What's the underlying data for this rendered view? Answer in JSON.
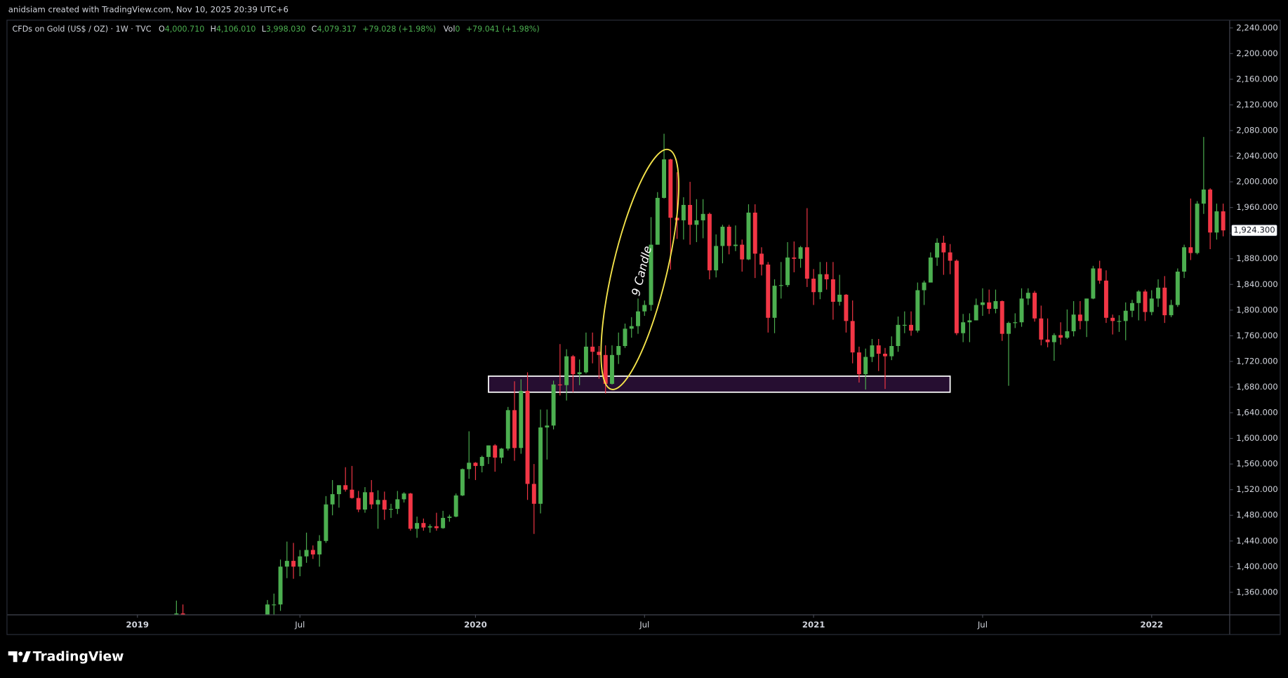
{
  "header": {
    "credit": "anidsiam created with TradingView.com, Nov 10, 2025 20:39 UTC+6"
  },
  "footer": {
    "brand": "TradingView"
  },
  "chart_data": {
    "type": "candlestick",
    "symbol": "CFDs on Gold (US$ / OZ) · 1W · TVC",
    "legend": {
      "o_label": "O",
      "o": "4,000.710",
      "h_label": "H",
      "h": "4,106.010",
      "l_label": "L",
      "l": "3,998.030",
      "c_label": "C",
      "c": "4,079.317",
      "change": "+79.028 (+1.98%)",
      "vol_label": "Vol",
      "vol": "0",
      "vol_change": "+79.041 (+1.98%)"
    },
    "annotation": "9 Candle",
    "up_color": "#4caf50",
    "down_color": "#f23645",
    "zone": {
      "x": [
        54,
        125
      ],
      "y": [
        1672,
        1697
      ]
    },
    "last_price": {
      "value": 1924.3,
      "label": "1,924.300"
    },
    "xlim": [
      -20,
      168
    ],
    "ylim": [
      1325.5,
      2251.5
    ],
    "xticks": [
      {
        "value": 0,
        "label": "2019"
      },
      {
        "value": 25,
        "label": "Jul"
      },
      {
        "value": 52,
        "label": "2020"
      },
      {
        "value": 78,
        "label": "Jul"
      },
      {
        "value": 104,
        "label": "2021"
      },
      {
        "value": 130,
        "label": "Jul"
      },
      {
        "value": 156,
        "label": "2022"
      }
    ],
    "yticks": [
      {
        "value": 1360,
        "label": "1,360.000"
      },
      {
        "value": 1400,
        "label": "1,400.000"
      },
      {
        "value": 1440,
        "label": "1,440.000"
      },
      {
        "value": 1480,
        "label": "1,480.000"
      },
      {
        "value": 1520,
        "label": "1,520.000"
      },
      {
        "value": 1560,
        "label": "1,560.000"
      },
      {
        "value": 1600,
        "label": "1,600.000"
      },
      {
        "value": 1640,
        "label": "1,640.000"
      },
      {
        "value": 1680,
        "label": "1,680.000"
      },
      {
        "value": 1720,
        "label": "1,720.000"
      },
      {
        "value": 1760,
        "label": "1,760.000"
      },
      {
        "value": 1800,
        "label": "1,800.000"
      },
      {
        "value": 1840,
        "label": "1,840.000"
      },
      {
        "value": 1880,
        "label": "1,880.000"
      },
      {
        "value": 1920,
        "label": "1,920.000"
      },
      {
        "value": 1960,
        "label": "1,960.000"
      },
      {
        "value": 2000,
        "label": "2,000.000"
      },
      {
        "value": 2040,
        "label": "2,040.000"
      },
      {
        "value": 2080,
        "label": "2,080.000"
      },
      {
        "value": 2120,
        "label": "2,120.000"
      },
      {
        "value": 2160,
        "label": "2,160.000"
      },
      {
        "value": 2200,
        "label": "2,200.000"
      },
      {
        "value": 2240,
        "label": "2,240.000"
      }
    ],
    "x": [
      6,
      7,
      20,
      21,
      22,
      23,
      24,
      25,
      26,
      27,
      28,
      29,
      30,
      31,
      32,
      33,
      34,
      35,
      36,
      37,
      38,
      39,
      40,
      41,
      42,
      43,
      44,
      45,
      46,
      47,
      48,
      49,
      50,
      51,
      52,
      53,
      54,
      55,
      56,
      57,
      58,
      59,
      60,
      61,
      62,
      63,
      64,
      65,
      66,
      67,
      68,
      69,
      70,
      71,
      72,
      73,
      74,
      75,
      76,
      77,
      78,
      79,
      80,
      81,
      82,
      83,
      84,
      85,
      86,
      87,
      88,
      89,
      90,
      91,
      92,
      93,
      94,
      95,
      96,
      97,
      98,
      99,
      100,
      101,
      102,
      103,
      104,
      105,
      106,
      107,
      108,
      109,
      110,
      111,
      112,
      113,
      114,
      115,
      116,
      117,
      118,
      119,
      120,
      121,
      122,
      123,
      124,
      125,
      126,
      127,
      128,
      129,
      130,
      131,
      132,
      133,
      134,
      135,
      136,
      137,
      138,
      139,
      140,
      141,
      142,
      143,
      144,
      145,
      146,
      147,
      148,
      149,
      150,
      151,
      152,
      153,
      154,
      155,
      156,
      157,
      158,
      159,
      160,
      161,
      162,
      163,
      164,
      165,
      166,
      167
    ],
    "ohlc": [
      [
        1316,
        1347,
        1311,
        1327
      ],
      [
        1327,
        1341,
        1319,
        1322
      ],
      [
        1305,
        1348,
        1305,
        1341
      ],
      [
        1341,
        1358,
        1321,
        1341
      ],
      [
        1341,
        1411,
        1331,
        1400
      ],
      [
        1400,
        1439,
        1382,
        1409
      ],
      [
        1409,
        1437,
        1381,
        1400
      ],
      [
        1400,
        1426,
        1385,
        1416
      ],
      [
        1416,
        1453,
        1406,
        1426
      ],
      [
        1426,
        1433,
        1412,
        1419
      ],
      [
        1419,
        1449,
        1400,
        1440
      ],
      [
        1440,
        1510,
        1437,
        1497
      ],
      [
        1497,
        1535,
        1480,
        1513
      ],
      [
        1513,
        1527,
        1492,
        1527
      ],
      [
        1527,
        1555,
        1517,
        1520
      ],
      [
        1520,
        1557,
        1506,
        1507
      ],
      [
        1507,
        1518,
        1485,
        1489
      ],
      [
        1489,
        1524,
        1484,
        1516
      ],
      [
        1516,
        1535,
        1490,
        1497
      ],
      [
        1497,
        1519,
        1459,
        1504
      ],
      [
        1504,
        1517,
        1473,
        1489
      ],
      [
        1489,
        1498,
        1476,
        1490
      ],
      [
        1490,
        1518,
        1482,
        1505
      ],
      [
        1505,
        1516,
        1500,
        1514
      ],
      [
        1514,
        1515,
        1456,
        1459
      ],
      [
        1459,
        1478,
        1445,
        1468
      ],
      [
        1468,
        1475,
        1456,
        1461
      ],
      [
        1461,
        1466,
        1453,
        1463
      ],
      [
        1463,
        1484,
        1456,
        1460
      ],
      [
        1460,
        1487,
        1459,
        1476
      ],
      [
        1476,
        1481,
        1470,
        1478
      ],
      [
        1478,
        1514,
        1477,
        1511
      ],
      [
        1511,
        1553,
        1510,
        1552
      ],
      [
        1552,
        1611,
        1537,
        1562
      ],
      [
        1562,
        1563,
        1535,
        1557
      ],
      [
        1557,
        1573,
        1547,
        1571
      ],
      [
        1571,
        1589,
        1560,
        1589
      ],
      [
        1589,
        1591,
        1548,
        1570
      ],
      [
        1570,
        1585,
        1561,
        1584
      ],
      [
        1584,
        1649,
        1581,
        1644
      ],
      [
        1644,
        1689,
        1565,
        1585
      ],
      [
        1585,
        1692,
        1576,
        1674
      ],
      [
        1674,
        1703,
        1504,
        1529
      ],
      [
        1529,
        1560,
        1451,
        1498
      ],
      [
        1498,
        1645,
        1483,
        1617
      ],
      [
        1617,
        1645,
        1567,
        1620
      ],
      [
        1620,
        1690,
        1614,
        1684
      ],
      [
        1684,
        1747,
        1667,
        1683
      ],
      [
        1683,
        1739,
        1659,
        1728
      ],
      [
        1728,
        1730,
        1672,
        1700
      ],
      [
        1700,
        1723,
        1683,
        1703
      ],
      [
        1703,
        1765,
        1701,
        1743
      ],
      [
        1743,
        1765,
        1717,
        1735
      ],
      [
        1735,
        1744,
        1693,
        1730
      ],
      [
        1730,
        1745,
        1670,
        1685
      ],
      [
        1685,
        1745,
        1684,
        1730
      ],
      [
        1730,
        1765,
        1716,
        1744
      ],
      [
        1744,
        1779,
        1741,
        1771
      ],
      [
        1771,
        1789,
        1757,
        1775
      ],
      [
        1775,
        1818,
        1763,
        1798
      ],
      [
        1798,
        1815,
        1791,
        1808
      ],
      [
        1808,
        1945,
        1799,
        1902
      ],
      [
        1902,
        1984,
        1902,
        1975
      ],
      [
        1975,
        2075,
        1974,
        2035
      ],
      [
        2035,
        2036,
        1863,
        1944
      ],
      [
        1944,
        2015,
        1911,
        1940
      ],
      [
        1940,
        1976,
        1910,
        1964
      ],
      [
        1964,
        2000,
        1902,
        1933
      ],
      [
        1933,
        1973,
        1906,
        1940
      ],
      [
        1940,
        1973,
        1912,
        1950
      ],
      [
        1950,
        1952,
        1848,
        1862
      ],
      [
        1862,
        1918,
        1851,
        1900
      ],
      [
        1900,
        1933,
        1873,
        1930
      ],
      [
        1930,
        1933,
        1887,
        1900
      ],
      [
        1900,
        1932,
        1892,
        1902
      ],
      [
        1902,
        1910,
        1860,
        1879
      ],
      [
        1879,
        1965,
        1878,
        1952
      ],
      [
        1952,
        1965,
        1850,
        1888
      ],
      [
        1888,
        1898,
        1854,
        1871
      ],
      [
        1871,
        1875,
        1765,
        1788
      ],
      [
        1788,
        1848,
        1764,
        1838
      ],
      [
        1838,
        1875,
        1818,
        1839
      ],
      [
        1839,
        1906,
        1836,
        1882
      ],
      [
        1882,
        1907,
        1859,
        1880
      ],
      [
        1880,
        1900,
        1866,
        1898
      ],
      [
        1898,
        1959,
        1836,
        1849
      ],
      [
        1849,
        1864,
        1808,
        1828
      ],
      [
        1828,
        1875,
        1817,
        1856
      ],
      [
        1856,
        1875,
        1832,
        1848
      ],
      [
        1848,
        1875,
        1785,
        1813
      ],
      [
        1813,
        1855,
        1807,
        1824
      ],
      [
        1824,
        1825,
        1765,
        1783
      ],
      [
        1783,
        1815,
        1717,
        1734
      ],
      [
        1734,
        1743,
        1687,
        1700
      ],
      [
        1700,
        1740,
        1676,
        1727
      ],
      [
        1727,
        1755,
        1719,
        1745
      ],
      [
        1745,
        1755,
        1705,
        1732
      ],
      [
        1732,
        1741,
        1677,
        1728
      ],
      [
        1728,
        1759,
        1722,
        1744
      ],
      [
        1744,
        1790,
        1735,
        1777
      ],
      [
        1777,
        1798,
        1764,
        1777
      ],
      [
        1777,
        1798,
        1760,
        1768
      ],
      [
        1768,
        1843,
        1765,
        1831
      ],
      [
        1831,
        1846,
        1808,
        1843
      ],
      [
        1843,
        1890,
        1843,
        1882
      ],
      [
        1882,
        1912,
        1869,
        1905
      ],
      [
        1905,
        1916,
        1855,
        1890
      ],
      [
        1890,
        1903,
        1856,
        1877
      ],
      [
        1877,
        1879,
        1761,
        1764
      ],
      [
        1764,
        1794,
        1750,
        1781
      ],
      [
        1781,
        1795,
        1750,
        1784
      ],
      [
        1784,
        1818,
        1784,
        1808
      ],
      [
        1808,
        1834,
        1791,
        1812
      ],
      [
        1812,
        1832,
        1794,
        1802
      ],
      [
        1802,
        1832,
        1795,
        1814
      ],
      [
        1814,
        1815,
        1752,
        1763
      ],
      [
        1763,
        1782,
        1682,
        1780
      ],
      [
        1780,
        1795,
        1772,
        1781
      ],
      [
        1781,
        1834,
        1774,
        1818
      ],
      [
        1818,
        1834,
        1808,
        1827
      ],
      [
        1827,
        1830,
        1782,
        1787
      ],
      [
        1787,
        1807,
        1745,
        1754
      ],
      [
        1754,
        1787,
        1742,
        1750
      ],
      [
        1750,
        1764,
        1721,
        1761
      ],
      [
        1761,
        1781,
        1746,
        1757
      ],
      [
        1757,
        1801,
        1755,
        1767
      ],
      [
        1767,
        1814,
        1759,
        1793
      ],
      [
        1793,
        1814,
        1770,
        1783
      ],
      [
        1783,
        1818,
        1758,
        1818
      ],
      [
        1818,
        1869,
        1817,
        1865
      ],
      [
        1865,
        1877,
        1841,
        1846
      ],
      [
        1846,
        1862,
        1780,
        1788
      ],
      [
        1788,
        1793,
        1762,
        1783
      ],
      [
        1783,
        1792,
        1766,
        1783
      ],
      [
        1783,
        1812,
        1753,
        1799
      ],
      [
        1799,
        1816,
        1789,
        1811
      ],
      [
        1811,
        1831,
        1784,
        1829
      ],
      [
        1829,
        1832,
        1783,
        1797
      ],
      [
        1797,
        1831,
        1792,
        1818
      ],
      [
        1818,
        1848,
        1805,
        1835
      ],
      [
        1835,
        1853,
        1780,
        1792
      ],
      [
        1792,
        1816,
        1789,
        1808
      ],
      [
        1808,
        1865,
        1805,
        1860
      ],
      [
        1860,
        1902,
        1850,
        1898
      ],
      [
        1898,
        1974,
        1878,
        1889
      ],
      [
        1889,
        1970,
        1887,
        1966
      ],
      [
        1966,
        2070,
        1950,
        1988
      ],
      [
        1988,
        1990,
        1895,
        1921
      ],
      [
        1921,
        1966,
        1910,
        1954
      ],
      [
        1954,
        1966,
        1915,
        1924.3
      ]
    ]
  }
}
